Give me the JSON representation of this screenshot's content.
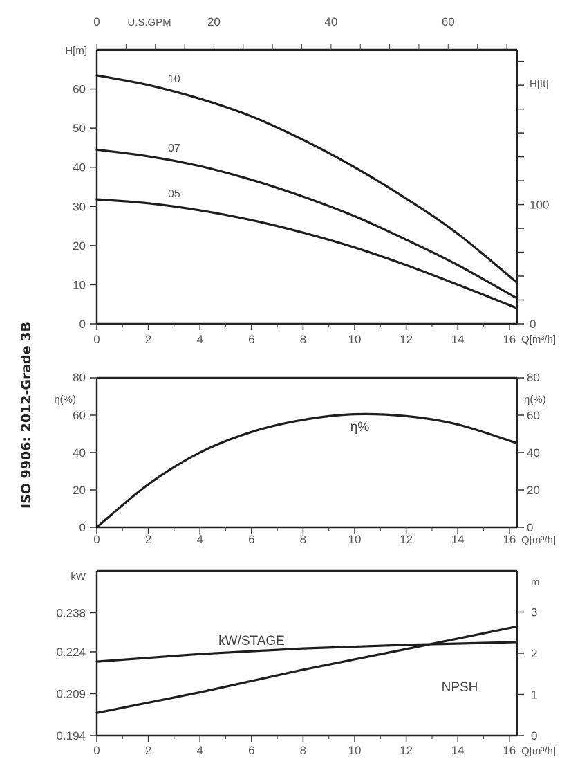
{
  "side_title": "ISO 9906: 2012-Grade 3B",
  "chart_data": [
    {
      "type": "line",
      "name": "head",
      "xlabel": "Q[m³/h]",
      "ylabel": "H[m]",
      "y2label": "H[ft]",
      "x2label": "U.S.GPM",
      "xlim": [
        0,
        16.3
      ],
      "ylim": [
        0,
        70
      ],
      "x_ticks": [
        0,
        2,
        4,
        6,
        8,
        10,
        12,
        14,
        16
      ],
      "y_ticks": [
        0,
        10,
        20,
        30,
        40,
        50,
        60
      ],
      "y2_ticks": [
        0,
        100
      ],
      "y2_tick_labels": [
        "0",
        "100"
      ],
      "x2_ticks": [
        0,
        20,
        40,
        60
      ],
      "x2_tick_labels": [
        "0",
        "20",
        "40",
        "60"
      ],
      "series": [
        {
          "name": "10",
          "x": [
            0,
            2,
            4,
            6,
            8,
            10,
            12,
            14,
            16.3
          ],
          "y": [
            63.5,
            61,
            57.5,
            53,
            47,
            40,
            32,
            23,
            10.5
          ]
        },
        {
          "name": "07",
          "x": [
            0,
            2,
            4,
            6,
            8,
            10,
            12,
            14,
            16.3
          ],
          "y": [
            44.5,
            42.8,
            40.3,
            36.8,
            32.5,
            27.5,
            21.5,
            15,
            6.5
          ]
        },
        {
          "name": "05",
          "x": [
            0,
            2,
            4,
            6,
            8,
            10,
            12,
            14,
            16.3
          ],
          "y": [
            31.8,
            30.8,
            29,
            26.5,
            23.3,
            19.5,
            15,
            10,
            4
          ]
        }
      ]
    },
    {
      "type": "line",
      "name": "efficiency",
      "xlabel": "Q[m³/h]",
      "ylabel": "η(%)",
      "y2label": "η(%)",
      "xlim": [
        0,
        16.3
      ],
      "ylim": [
        0,
        80
      ],
      "x_ticks": [
        0,
        2,
        4,
        6,
        8,
        10,
        12,
        14,
        16
      ],
      "y_ticks": [
        0,
        20,
        40,
        60,
        80
      ],
      "series": [
        {
          "name": "η%",
          "x": [
            0,
            2,
            4,
            6,
            8,
            10,
            12,
            14,
            16.3
          ],
          "y": [
            0,
            23,
            40,
            51,
            57.5,
            60.5,
            59.5,
            55,
            45
          ]
        }
      ]
    },
    {
      "type": "line",
      "name": "power-npsh",
      "xlabel": "Q[m³/h]",
      "ylabel": "kW",
      "y2label": "m",
      "xlim": [
        0,
        16.3
      ],
      "ylim": [
        0.194,
        0.253
      ],
      "y2lim": [
        0,
        4
      ],
      "x_ticks": [
        0,
        2,
        4,
        6,
        8,
        10,
        12,
        14,
        16
      ],
      "y_ticks": [
        0.194,
        0.209,
        0.224,
        0.238
      ],
      "y_tick_labels": [
        "0.194",
        "0.209",
        "0.224",
        "0.238"
      ],
      "y2_ticks": [
        0,
        1,
        2,
        3
      ],
      "series": [
        {
          "name": "kW/STAGE",
          "axis": "left",
          "x": [
            0,
            4,
            8,
            12,
            16.3
          ],
          "y": [
            0.2205,
            0.2232,
            0.2252,
            0.2265,
            0.2275
          ]
        },
        {
          "name": "NPSH",
          "axis": "right",
          "x": [
            0,
            4,
            8,
            12,
            16.3
          ],
          "y": [
            0.55,
            1.05,
            1.6,
            2.1,
            2.65
          ]
        }
      ]
    }
  ]
}
